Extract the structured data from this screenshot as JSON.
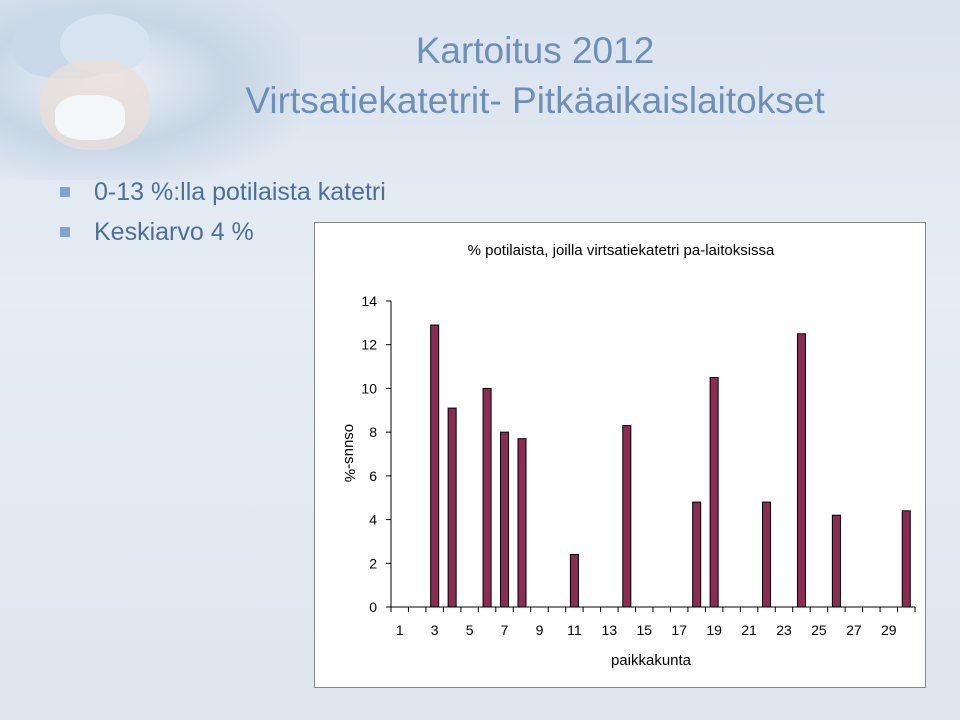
{
  "slide": {
    "title_line1": "Kartoitus 2012",
    "title_line2": "Virtsatiekatetrit- Pitkäaikaislaitokset",
    "bullets": [
      "0-13 %:lla potilaista katetri",
      "Keskiarvo 4 %"
    ]
  },
  "colors": {
    "bar_fill": "#8b2d52",
    "title": "#6d8fb8",
    "bullet_text": "#4d6f9e"
  },
  "chart_data": {
    "type": "bar",
    "title": "% potilaista, joilla virtsatiekatetri pa-laitoksissa",
    "xlabel": "paikkakunta",
    "ylabel": "osuus-%",
    "ylim": [
      0,
      14
    ],
    "yticks": [
      0,
      2,
      4,
      6,
      8,
      10,
      12,
      14
    ],
    "categories": [
      "1",
      "2",
      "3",
      "4",
      "5",
      "6",
      "7",
      "8",
      "9",
      "10",
      "11",
      "12",
      "13",
      "14",
      "15",
      "16",
      "17",
      "18",
      "19",
      "20",
      "21",
      "22",
      "23",
      "24",
      "25",
      "26",
      "27",
      "28",
      "29",
      "30"
    ],
    "xtick_labels": [
      "1",
      "3",
      "5",
      "7",
      "9",
      "11",
      "13",
      "15",
      "17",
      "19",
      "21",
      "23",
      "25",
      "27",
      "29"
    ],
    "values": [
      0,
      0,
      12.9,
      9.1,
      0,
      10.0,
      8.0,
      7.7,
      0,
      0,
      2.4,
      0,
      0,
      8.3,
      0,
      0,
      0,
      4.8,
      10.5,
      0,
      0,
      4.8,
      0,
      12.5,
      0,
      4.2,
      0,
      0,
      0,
      4.4
    ],
    "grid": false,
    "legend": "none"
  }
}
